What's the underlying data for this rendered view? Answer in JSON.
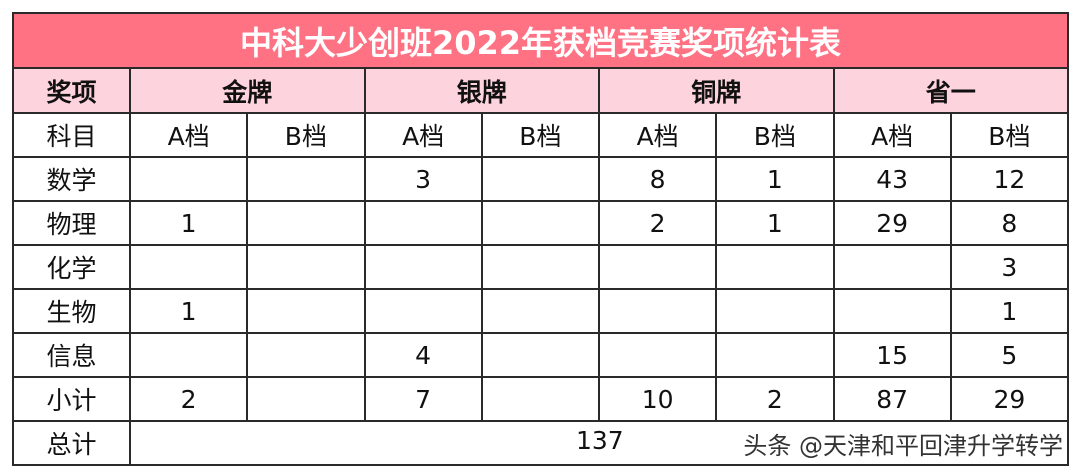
{
  "title": "中科大少创班2022年获档竞赛奖项统计表",
  "header": {
    "corner": "奖项",
    "groups": [
      "金牌",
      "银牌",
      "铜牌",
      "省一"
    ]
  },
  "sub_header": {
    "label": "科目",
    "tiers": [
      "A档",
      "B档",
      "A档",
      "B档",
      "A档",
      "B档",
      "A档",
      "B档"
    ]
  },
  "rows": [
    {
      "subject": "数学",
      "values": [
        "",
        "",
        "3",
        "",
        "8",
        "1",
        "43",
        "12"
      ]
    },
    {
      "subject": "物理",
      "values": [
        "1",
        "",
        "",
        "",
        "2",
        "1",
        "29",
        "8"
      ]
    },
    {
      "subject": "化学",
      "values": [
        "",
        "",
        "",
        "",
        "",
        "",
        "",
        "3"
      ]
    },
    {
      "subject": "生物",
      "values": [
        "1",
        "",
        "",
        "",
        "",
        "",
        "",
        "1"
      ]
    },
    {
      "subject": "信息",
      "values": [
        "",
        "",
        "4",
        "",
        "",
        "",
        "15",
        "5"
      ]
    },
    {
      "subject": "小计",
      "values": [
        "2",
        "",
        "7",
        "",
        "10",
        "2",
        "87",
        "29"
      ]
    }
  ],
  "total": {
    "label": "总计",
    "value": "137"
  },
  "watermark": "头条 @天津和平回津升学转学",
  "colors": {
    "title_bg": "#ff7284",
    "header_bg": "#fdd3de"
  }
}
